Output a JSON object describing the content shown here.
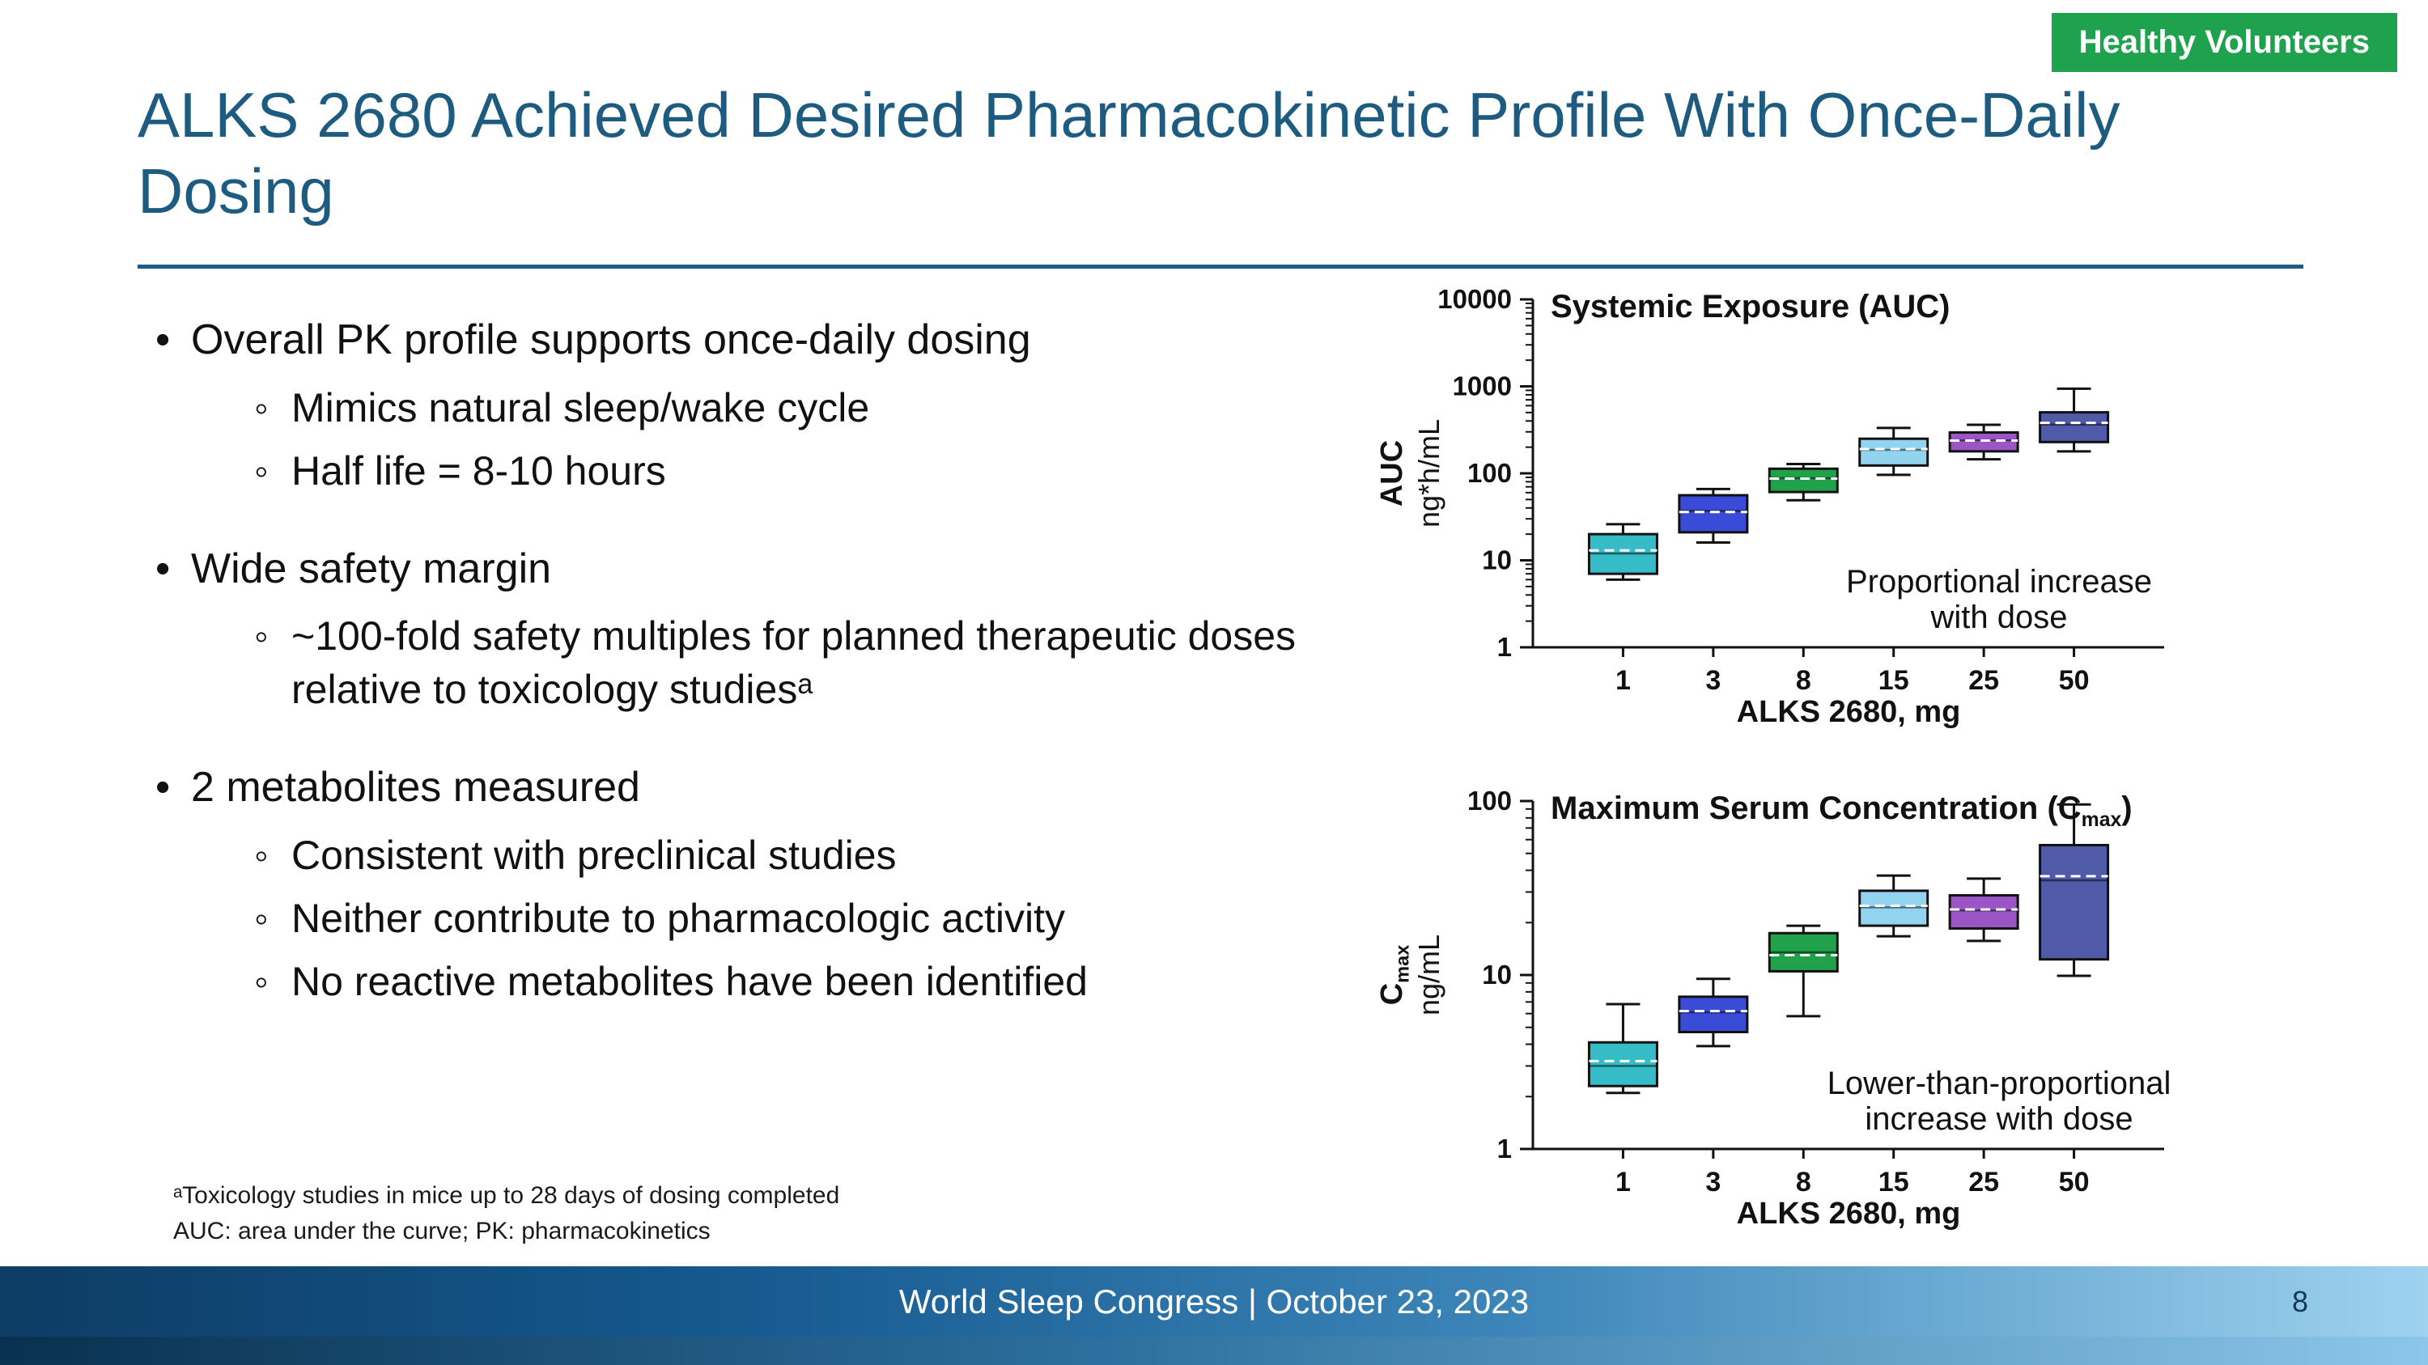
{
  "badge": {
    "label": "Healthy Volunteers"
  },
  "title": "ALKS 2680 Achieved Desired Pharmacokinetic Profile With Once-Daily Dosing",
  "bullets": [
    {
      "level": 1,
      "text": "Overall PK profile supports once-daily dosing"
    },
    {
      "level": 2,
      "text": "Mimics natural sleep/wake cycle"
    },
    {
      "level": 2,
      "text": "Half life = 8-10 hours"
    },
    {
      "level": 1,
      "text": "Wide safety margin",
      "gap": true
    },
    {
      "level": 2,
      "text": "~100-fold safety multiples for planned therapeutic doses relative to toxicology studiesᵃ"
    },
    {
      "level": 1,
      "text": "2 metabolites measured",
      "gap": true
    },
    {
      "level": 2,
      "text": "Consistent with preclinical studies"
    },
    {
      "level": 2,
      "text": "Neither contribute to pharmacologic activity"
    },
    {
      "level": 2,
      "text": "No reactive metabolites have been identified"
    }
  ],
  "footnotes": [
    "ᵃToxicology studies in mice up to 28 days of dosing completed",
    "AUC: area under the curve; PK: pharmacokinetics"
  ],
  "footer": {
    "text": "World Sleep Congress  |  October 23, 2023",
    "page": "8"
  },
  "colors": {
    "title_blue": "#1d5c80",
    "badge_green": "#1fa24e",
    "dose_colors": [
      "#35bcc6",
      "#3a4bd8",
      "#21a14c",
      "#92d3f0",
      "#9b55c4",
      "#4f5aa8"
    ]
  },
  "chart_data": [
    {
      "type": "box",
      "title": "Systemic Exposure (AUC)",
      "title_parts": [
        {
          "t": "Systemic Exposure (AUC)"
        }
      ],
      "ylabel1_parts": [
        {
          "t": "AUC"
        }
      ],
      "ylabel2": "ng*h/mL",
      "xlabel": "ALKS 2680, mg",
      "yscale": "log",
      "ylim": [
        1,
        10000
      ],
      "categories": [
        "1",
        "3",
        "8",
        "15",
        "25",
        "50"
      ],
      "annotation": [
        "Proportional increase",
        "with dose"
      ],
      "boxes": [
        {
          "dose": "1",
          "color": "#35bcc6",
          "low": 6,
          "q1": 7,
          "median": 12,
          "mean": 13,
          "q3": 20,
          "high": 26
        },
        {
          "dose": "3",
          "color": "#3a4bd8",
          "low": 16,
          "q1": 21,
          "median": 37,
          "mean": 36,
          "q3": 56,
          "high": 66
        },
        {
          "dose": "8",
          "color": "#21a14c",
          "low": 49,
          "q1": 61,
          "median": 88,
          "mean": 87,
          "q3": 113,
          "high": 128
        },
        {
          "dose": "15",
          "color": "#92d3f0",
          "low": 96,
          "q1": 123,
          "median": 186,
          "mean": 190,
          "q3": 250,
          "high": 333
        },
        {
          "dose": "25",
          "color": "#9b55c4",
          "low": 145,
          "q1": 179,
          "median": 240,
          "mean": 238,
          "q3": 295,
          "high": 362
        },
        {
          "dose": "50",
          "color": "#4f5aa8",
          "low": 179,
          "q1": 229,
          "median": 363,
          "mean": 380,
          "q3": 503,
          "high": 940
        }
      ]
    },
    {
      "type": "box",
      "title": "Maximum Serum Concentration (Cmax)",
      "title_parts": [
        {
          "t": "Maximum Serum Concentration (C"
        },
        {
          "t": "max",
          "sub": true
        },
        {
          "t": ")"
        }
      ],
      "ylabel1_parts": [
        {
          "t": "C"
        },
        {
          "t": "max",
          "sub": true
        }
      ],
      "ylabel2": "ng/mL",
      "xlabel": "ALKS 2680, mg",
      "yscale": "log",
      "ylim": [
        1,
        100
      ],
      "categories": [
        "1",
        "3",
        "8",
        "15",
        "25",
        "50"
      ],
      "annotation": [
        "Lower-than-proportional",
        "increase with dose"
      ],
      "boxes": [
        {
          "dose": "1",
          "color": "#35bcc6",
          "low": 2.1,
          "q1": 2.3,
          "median": 3.0,
          "mean": 3.2,
          "q3": 4.1,
          "high": 6.8
        },
        {
          "dose": "3",
          "color": "#3a4bd8",
          "low": 3.9,
          "q1": 4.7,
          "median": 6.1,
          "mean": 6.2,
          "q3": 7.5,
          "high": 9.5
        },
        {
          "dose": "8",
          "color": "#21a14c",
          "low": 5.8,
          "q1": 10.5,
          "median": 13.5,
          "mean": 13.0,
          "q3": 17.4,
          "high": 19.2
        },
        {
          "dose": "15",
          "color": "#92d3f0",
          "low": 16.7,
          "q1": 19.2,
          "median": 24.5,
          "mean": 25.0,
          "q3": 30.5,
          "high": 37.3
        },
        {
          "dose": "25",
          "color": "#9b55c4",
          "low": 15.7,
          "q1": 18.5,
          "median": 23.5,
          "mean": 23.8,
          "q3": 28.7,
          "high": 35.8
        },
        {
          "dose": "50",
          "color": "#4f5aa8",
          "low": 9.9,
          "q1": 12.3,
          "median": 35,
          "mean": 37,
          "q3": 55.8,
          "high": 95.6
        }
      ]
    }
  ]
}
